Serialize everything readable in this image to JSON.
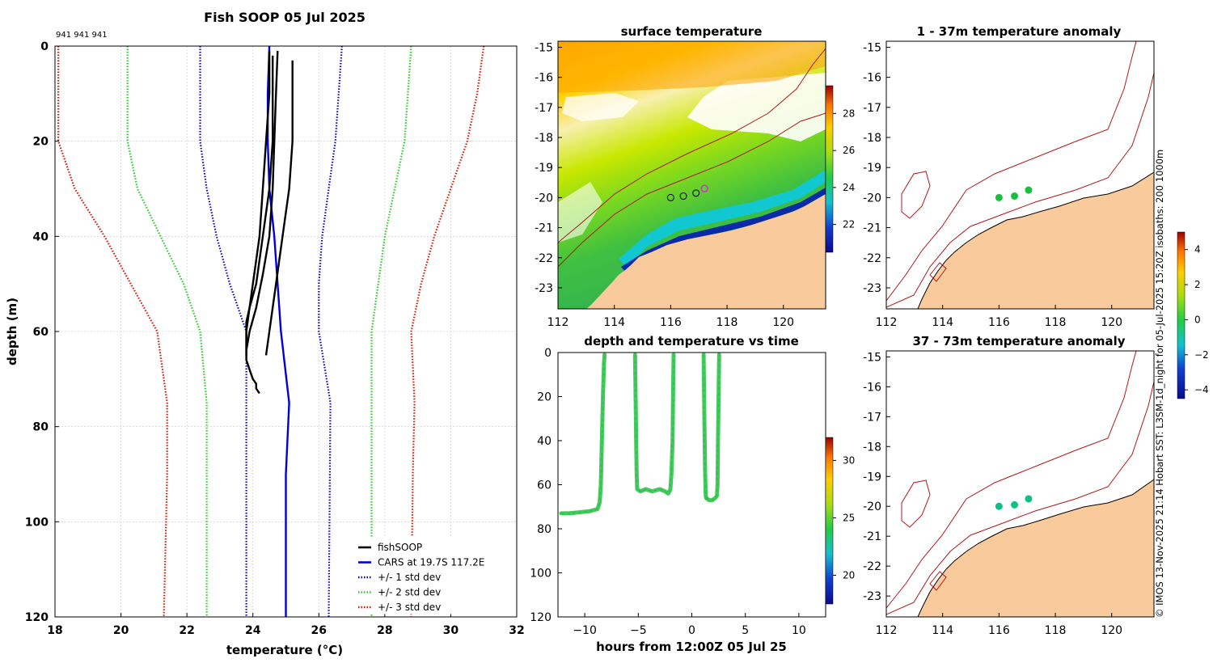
{
  "colors": {
    "cast": "#000000",
    "cars": "#0000dd",
    "std1": "#0000cc",
    "std2": "#22cc22",
    "std3": "#dd1100",
    "land": "#f9cb9c",
    "isobath": "#b01818",
    "marker_ring": "#cc33cc"
  },
  "chart_data": [
    {
      "type": "line",
      "title": "Fish SOOP 05 Jul 2025",
      "id_label": "941 941 941",
      "xlabel": "temperature (°C)",
      "ylabel": "depth (m)",
      "xlim": [
        18,
        32
      ],
      "ylim": [
        0,
        120
      ],
      "y_inverted": true,
      "xticks": [
        18,
        20,
        22,
        24,
        26,
        28,
        30,
        32
      ],
      "yticks": [
        0,
        20,
        40,
        60,
        80,
        100,
        120
      ],
      "grid": true,
      "legend_position": "bottom-right",
      "series": [
        {
          "name": "fishSOOP",
          "style": "solid",
          "color_key": "cast",
          "casts": [
            {
              "temp": [
                24.5,
                24.5,
                24.4,
                24.3,
                24.2,
                24.1,
                24.0,
                23.9,
                23.8,
                23.8,
                23.8,
                23.8,
                23.9,
                24.0,
                24.1,
                24.1,
                24.2
              ],
              "depth": [
                1,
                10,
                20,
                30,
                40,
                45,
                50,
                55,
                58,
                62,
                64,
                66,
                68,
                70,
                71,
                72,
                73
              ]
            },
            {
              "temp": [
                24.6,
                24.6,
                24.6,
                24.5,
                24.3,
                24.1,
                23.9,
                23.8,
                23.8
              ],
              "depth": [
                2,
                10,
                20,
                30,
                40,
                50,
                55,
                60,
                65
              ]
            },
            {
              "temp": [
                24.75,
                24.7,
                24.65,
                24.6,
                24.5,
                24.3,
                24.1,
                23.9,
                23.8
              ],
              "depth": [
                1,
                10,
                20,
                30,
                40,
                48,
                55,
                60,
                64
              ]
            },
            {
              "temp": [
                25.2,
                25.2,
                25.2,
                25.1,
                24.9,
                24.7,
                24.6,
                24.5,
                24.4
              ],
              "depth": [
                3,
                10,
                20,
                30,
                40,
                50,
                55,
                60,
                65
              ]
            }
          ]
        },
        {
          "name": "CARS at 19.7S 117.2E",
          "style": "solid",
          "color_key": "cars",
          "temp": [
            24.5,
            24.45,
            24.45,
            24.5,
            24.65,
            24.85,
            25.1,
            25.0,
            25.0
          ],
          "depth": [
            0,
            10,
            20,
            30,
            40,
            60,
            75,
            90,
            120
          ]
        },
        {
          "name": "+/- 1 std dev",
          "style": "dotted",
          "color_key": "std1",
          "low": {
            "temp": [
              22.4,
              22.4,
              22.4,
              22.6,
              22.9,
              23.3,
              23.8,
              23.8,
              23.8
            ],
            "depth": [
              0,
              10,
              20,
              30,
              40,
              50,
              60,
              75,
              120
            ]
          },
          "high": {
            "temp": [
              26.7,
              26.6,
              26.5,
              26.3,
              26.1,
              26.0,
              26.0,
              26.35,
              26.3
            ],
            "depth": [
              0,
              10,
              20,
              30,
              40,
              50,
              60,
              75,
              120
            ]
          }
        },
        {
          "name": "+/- 2 std dev",
          "style": "dotted",
          "color_key": "std2",
          "low": {
            "temp": [
              20.2,
              20.2,
              20.2,
              20.5,
              21.2,
              21.9,
              22.4,
              22.6,
              22.6
            ],
            "depth": [
              0,
              10,
              20,
              30,
              40,
              50,
              60,
              75,
              120
            ]
          },
          "high": {
            "temp": [
              28.8,
              28.7,
              28.6,
              28.3,
              28.0,
              27.8,
              27.6,
              27.6,
              27.6
            ],
            "depth": [
              0,
              10,
              20,
              30,
              40,
              50,
              60,
              75,
              120
            ]
          }
        },
        {
          "name": "+/- 3 std dev",
          "style": "dotted",
          "color_key": "std3",
          "low": {
            "temp": [
              18.1,
              18.1,
              18.1,
              18.6,
              19.5,
              20.3,
              21.1,
              21.4,
              21.4,
              21.3
            ],
            "depth": [
              0,
              5,
              20,
              30,
              40,
              50,
              60,
              75,
              90,
              120
            ]
          },
          "high": {
            "temp": [
              31.0,
              30.8,
              30.5,
              30.0,
              29.5,
              29.1,
              28.8,
              28.9,
              28.85,
              28.8
            ],
            "depth": [
              0,
              10,
              20,
              30,
              40,
              50,
              60,
              75,
              90,
              120
            ]
          }
        }
      ]
    },
    {
      "type": "heatmap",
      "title": "surface temperature",
      "xlim": [
        112,
        121.5
      ],
      "ylim": [
        -23.7,
        -14.8
      ],
      "xticks": [
        112,
        114,
        116,
        118,
        120
      ],
      "yticks": [
        -15,
        -16,
        -17,
        -18,
        -19,
        -20,
        -21,
        -22,
        -23
      ],
      "colorbar_ticks": [
        22,
        24,
        26,
        28
      ],
      "colorbar_range": [
        20.5,
        29.5
      ],
      "stations": [
        {
          "lon": 116.0,
          "lat": -20.0
        },
        {
          "lon": 116.45,
          "lat": -19.95
        },
        {
          "lon": 116.9,
          "lat": -19.85
        }
      ],
      "current_position": {
        "lon": 117.2,
        "lat": -19.7
      }
    },
    {
      "type": "scatter",
      "title": "depth and temperature vs time",
      "xlabel": "hours from 12:00Z 05 Jul 25",
      "xlim": [
        -12.5,
        12.5
      ],
      "ylim": [
        0,
        120
      ],
      "y_inverted": true,
      "xticks": [
        -10,
        -5,
        0,
        5,
        10
      ],
      "yticks": [
        0,
        20,
        40,
        60,
        80,
        100,
        120
      ],
      "colorbar_ticks": [
        20,
        25,
        30
      ],
      "colorbar_range": [
        17.5,
        32
      ],
      "tracks": [
        {
          "hours": [
            -12.2,
            -11.5,
            -10.5,
            -9.5,
            -8.8,
            -8.6,
            -8.5,
            -8.4,
            -8.3,
            -8.2,
            -8.15
          ],
          "depth": [
            73,
            73,
            72.5,
            72,
            71,
            68,
            60,
            40,
            20,
            5,
            1
          ]
        },
        {
          "hours": [
            -5.3,
            -5.25,
            -5.2,
            -5.15,
            -5.1,
            -4.8,
            -4.3,
            -3.7,
            -3.0,
            -2.5,
            -2.2,
            -2.0,
            -1.9,
            -1.8,
            -1.75,
            -1.7
          ],
          "depth": [
            1,
            20,
            40,
            55,
            62,
            63,
            62,
            63,
            62,
            63,
            64,
            62,
            55,
            40,
            20,
            1
          ]
        },
        {
          "hours": [
            1.1,
            1.15,
            1.2,
            1.25,
            1.3,
            1.35
          ],
          "depth": [
            1,
            20,
            40,
            55,
            65,
            66
          ]
        },
        {
          "hours": [
            1.35,
            1.6,
            1.9,
            2.2,
            2.35,
            2.4,
            2.45,
            2.5,
            2.55
          ],
          "depth": [
            66,
            67,
            67,
            66,
            65,
            60,
            40,
            20,
            1
          ]
        }
      ]
    },
    {
      "type": "scatter",
      "title": "1 - 37m temperature anomaly",
      "xlim": [
        112,
        121.5
      ],
      "ylim": [
        -23.7,
        -14.8
      ],
      "xticks": [
        112,
        114,
        116,
        118,
        120
      ],
      "yticks": [
        -15,
        -16,
        -17,
        -18,
        -19,
        -20,
        -21,
        -22,
        -23
      ],
      "colorbar_ticks": [
        -4,
        -2,
        0,
        2,
        4
      ],
      "colorbar_range": [
        -4.5,
        5
      ],
      "points": [
        {
          "lon": 116.0,
          "lat": -20.0,
          "anomaly": 0.0
        },
        {
          "lon": 116.55,
          "lat": -19.95,
          "anomaly": 0.0
        },
        {
          "lon": 117.05,
          "lat": -19.75,
          "anomaly": 0.0
        }
      ]
    },
    {
      "type": "scatter",
      "title": "37 - 73m temperature anomaly",
      "xlim": [
        112,
        121.5
      ],
      "ylim": [
        -23.7,
        -14.8
      ],
      "xticks": [
        112,
        114,
        116,
        118,
        120
      ],
      "yticks": [
        -15,
        -16,
        -17,
        -18,
        -19,
        -20,
        -21,
        -22,
        -23
      ],
      "points": [
        {
          "lon": 116.0,
          "lat": -20.0,
          "anomaly": -0.5
        },
        {
          "lon": 116.55,
          "lat": -19.95,
          "anomaly": -0.5
        },
        {
          "lon": 117.05,
          "lat": -19.75,
          "anomaly": -0.5
        }
      ]
    }
  ],
  "side_note": "© IMOS 13-Nov-2025 21:14 Hobart SST: L3SM-1d_night for 05-Jul-2025 15:20Z isobaths: 200  1000m"
}
